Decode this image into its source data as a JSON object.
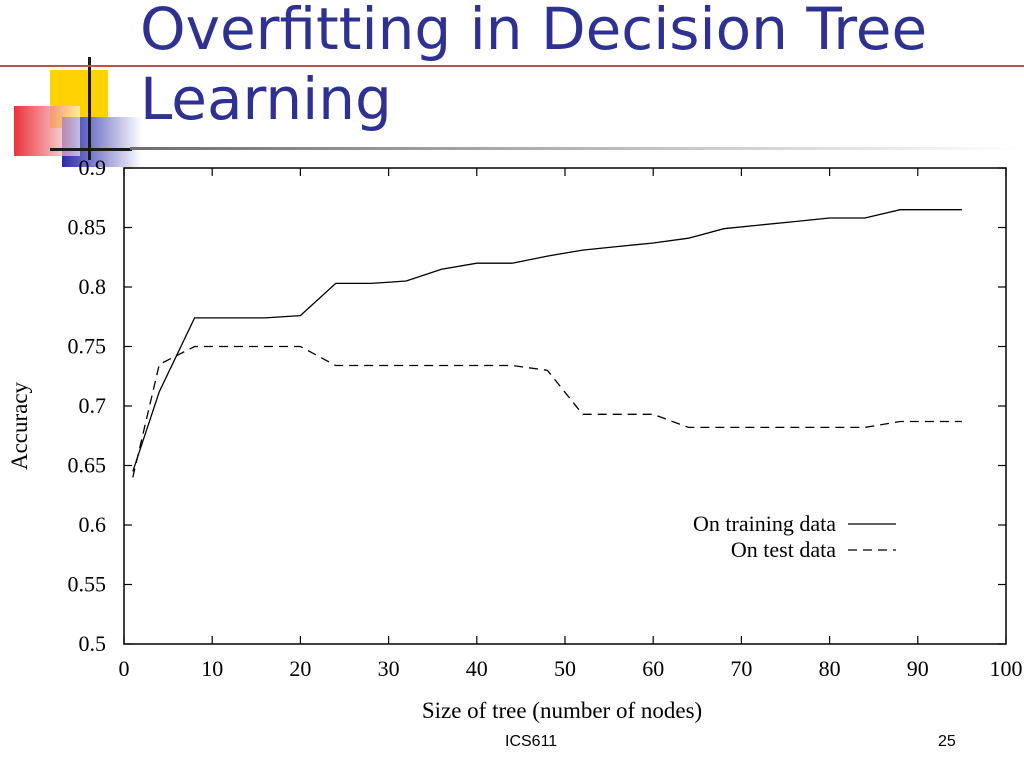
{
  "slide": {
    "title_lines": [
      "Overfitting in Decision Tree",
      "Learning"
    ],
    "footer_left": "ICS611",
    "page_number": "25",
    "colors": {
      "title": "#2e3192",
      "rule_red": "#c0504d",
      "deco_yellow": "#ffd200",
      "deco_blue": "#2a2aa8",
      "deco_red": "#e8333a"
    }
  },
  "chart_data": {
    "type": "line",
    "title": "",
    "xlabel": "Size of tree (number of nodes)",
    "ylabel": "Accuracy",
    "xlim": [
      0,
      100
    ],
    "ylim": [
      0.5,
      0.9
    ],
    "xticks": [
      "0",
      "10",
      "20",
      "30",
      "40",
      "50",
      "60",
      "70",
      "80",
      "90",
      "100"
    ],
    "yticks": [
      "0.5",
      "0.55",
      "0.6",
      "0.65",
      "0.7",
      "0.75",
      "0.8",
      "0.85",
      "0.9"
    ],
    "grid": false,
    "legend_position": "lower-right",
    "series": [
      {
        "name": "On training data",
        "style": "solid",
        "x": [
          1,
          4,
          8,
          12,
          16,
          20,
          24,
          28,
          32,
          36,
          40,
          44,
          48,
          52,
          56,
          60,
          64,
          68,
          72,
          76,
          80,
          84,
          88,
          92,
          95
        ],
        "y": [
          0.645,
          0.712,
          0.774,
          0.774,
          0.774,
          0.776,
          0.803,
          0.803,
          0.805,
          0.815,
          0.82,
          0.82,
          0.826,
          0.831,
          0.834,
          0.837,
          0.841,
          0.849,
          0.852,
          0.855,
          0.858,
          0.858,
          0.865,
          0.865,
          0.865
        ]
      },
      {
        "name": "On test data",
        "style": "dashed",
        "x": [
          1,
          4,
          8,
          12,
          16,
          20,
          24,
          28,
          32,
          36,
          40,
          44,
          48,
          52,
          56,
          60,
          64,
          68,
          72,
          76,
          80,
          84,
          88,
          92,
          95
        ],
        "y": [
          0.64,
          0.735,
          0.75,
          0.75,
          0.75,
          0.75,
          0.734,
          0.734,
          0.734,
          0.734,
          0.734,
          0.734,
          0.73,
          0.693,
          0.693,
          0.693,
          0.682,
          0.682,
          0.682,
          0.682,
          0.682,
          0.682,
          0.687,
          0.687,
          0.687
        ]
      }
    ]
  }
}
